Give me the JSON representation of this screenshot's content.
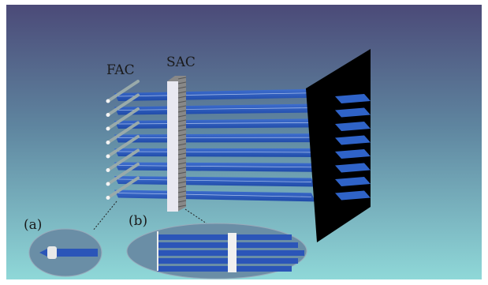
{
  "labels": {
    "fac": "FAC",
    "sac": "SAC",
    "inset_a": "(a)",
    "inset_b": "(b)"
  }
}
